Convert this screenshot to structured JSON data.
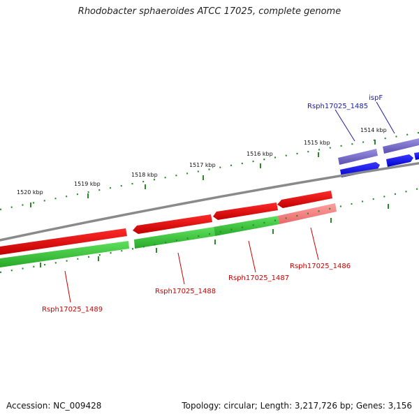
{
  "title": "Rhodobacter sphaeroides ATCC 17025, complete genome",
  "accession": "Accession: NC_009428",
  "summary": "Topology: circular; Length: 3,217,726 bp; Genes: 3,156",
  "colors": {
    "backbone": "#8a8a8a",
    "tick": "#2a8a2a",
    "forward_gene": "#0000ee",
    "forward_cds": "#7a70cc",
    "reverse_gene": "#e00000",
    "reverse_cds_light": "#f08080",
    "cds_green": "#3cc83c",
    "label_red": "#cc0000",
    "label_blue": "#1a1aaa"
  },
  "kbp_labels": [
    "1514 kbp",
    "1515 kbp",
    "1516 kbp",
    "1517 kbp",
    "1518 kbp",
    "1519 kbp",
    "1520 kbp"
  ],
  "gene_labels": {
    "rsph1485": "Rsph17025_1485",
    "ispF": "ispF",
    "rsph1486": "Rsph17025_1486",
    "rsph1487": "Rsph17025_1487",
    "rsph1488": "Rsph17025_1488",
    "rsph1489": "Rsph17025_1489"
  }
}
